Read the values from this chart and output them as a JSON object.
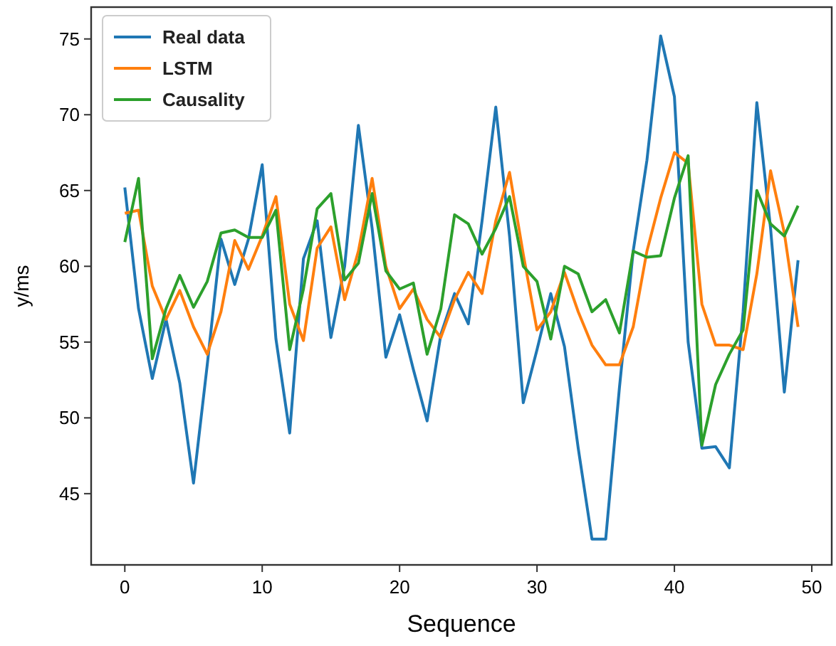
{
  "chart_data": {
    "type": "line",
    "xlabel": "Sequence",
    "ylabel": "y/ms",
    "x": [
      0,
      1,
      2,
      3,
      4,
      5,
      6,
      7,
      8,
      9,
      10,
      11,
      12,
      13,
      14,
      15,
      16,
      17,
      18,
      19,
      20,
      21,
      22,
      23,
      24,
      25,
      26,
      27,
      28,
      29,
      30,
      31,
      32,
      33,
      34,
      35,
      36,
      37,
      38,
      39,
      40,
      41,
      42,
      43,
      44,
      45,
      46,
      47,
      48,
      49
    ],
    "xlim": [
      -2.45,
      51.45
    ],
    "xticks": [
      0,
      10,
      20,
      30,
      40,
      50
    ],
    "ylim": [
      40.3,
      77.1
    ],
    "yticks": [
      45,
      50,
      55,
      60,
      65,
      70,
      75
    ],
    "legend": "top left",
    "grid": false,
    "line_style": "solid",
    "series": [
      {
        "name": "Real data",
        "color": "#1f77b4",
        "values": [
          65.2,
          57.2,
          52.6,
          56.5,
          52.3,
          45.7,
          53.5,
          61.8,
          58.8,
          61.8,
          66.7,
          55.2,
          49.0,
          60.5,
          63.0,
          55.3,
          60.0,
          69.3,
          62.5,
          54.0,
          56.8,
          53.2,
          49.8,
          55.5,
          58.2,
          56.2,
          63.0,
          70.5,
          62.0,
          51.0,
          54.5,
          58.2,
          54.7,
          48.0,
          42.0,
          42.0,
          52.0,
          61.0,
          67.0,
          75.2,
          71.2,
          55.0,
          48.0,
          48.1,
          46.7,
          57.0,
          70.8,
          62.5,
          51.7,
          60.4
        ]
      },
      {
        "name": "LSTM",
        "color": "#ff7f0e",
        "values": [
          63.5,
          63.7,
          58.7,
          56.5,
          58.4,
          56.0,
          54.2,
          57.0,
          61.7,
          59.8,
          62.0,
          64.6,
          57.5,
          55.1,
          61.2,
          62.6,
          57.8,
          61.0,
          65.8,
          60.0,
          57.2,
          58.5,
          56.5,
          55.3,
          57.8,
          59.6,
          58.2,
          63.0,
          66.2,
          60.8,
          55.8,
          57.0,
          59.6,
          57.0,
          54.8,
          53.5,
          53.5,
          56.0,
          61.0,
          64.5,
          67.5,
          66.8,
          57.5,
          54.8,
          54.8,
          54.5,
          59.5,
          66.3,
          62.2,
          56.0
        ]
      },
      {
        "name": "Causality",
        "color": "#2ca02c",
        "values": [
          61.6,
          65.8,
          53.9,
          57.2,
          59.4,
          57.3,
          59.0,
          62.2,
          62.4,
          61.9,
          61.9,
          63.7,
          54.5,
          58.5,
          63.8,
          64.8,
          59.1,
          60.2,
          64.8,
          59.7,
          58.5,
          58.9,
          54.2,
          57.2,
          63.4,
          62.8,
          60.8,
          62.5,
          64.6,
          60.0,
          59.0,
          55.2,
          60.0,
          59.5,
          57.0,
          57.8,
          55.6,
          61.0,
          60.6,
          60.7,
          64.5,
          67.3,
          48.2,
          52.2,
          54.2,
          55.8,
          65.0,
          62.8,
          62.0,
          64.0
        ]
      }
    ]
  }
}
